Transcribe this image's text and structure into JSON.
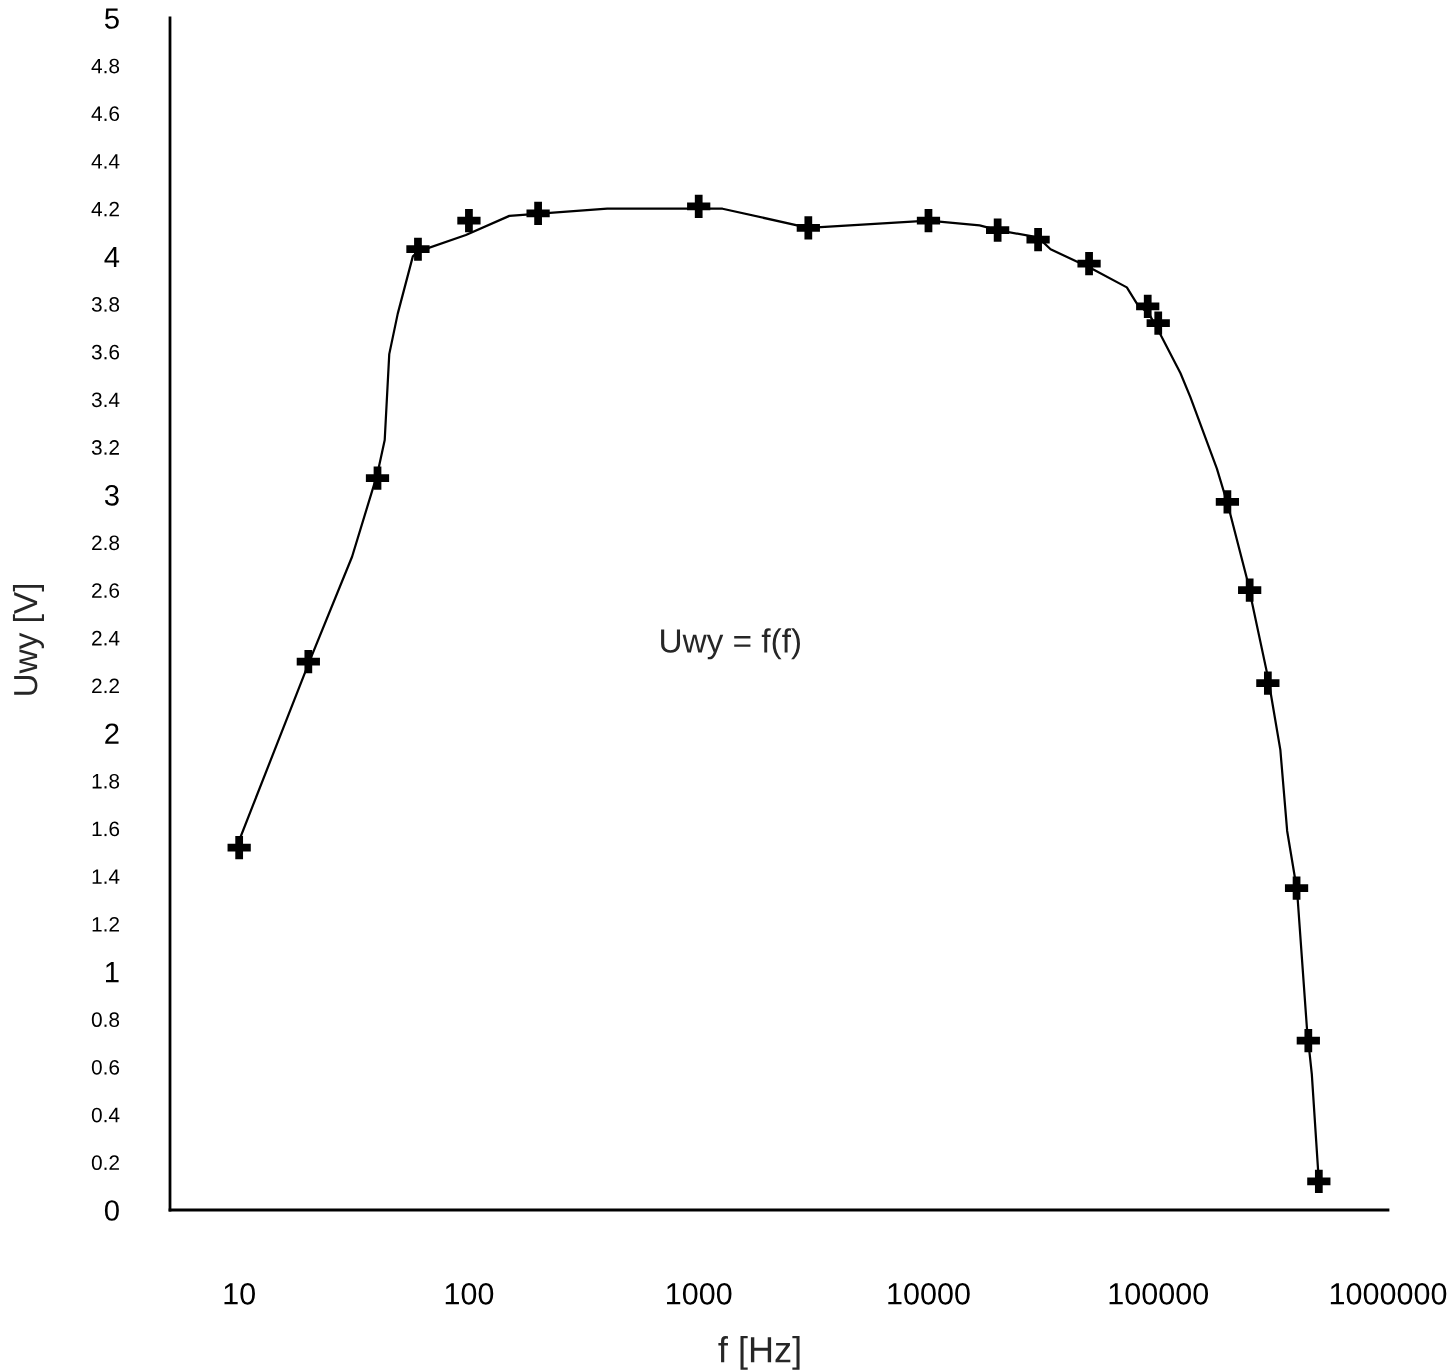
{
  "chart_data": {
    "type": "scatter",
    "xlabel": "f [Hz]",
    "ylabel": "Uwy [V]",
    "annotations": [
      "Uwy = f(f)"
    ],
    "log": "x",
    "xlim": [
      5,
      1000000
    ],
    "xticks": [
      10,
      100,
      1000,
      10000,
      100000,
      1000000
    ],
    "ylim": [
      0,
      5
    ],
    "yticks": [
      0,
      0.2,
      0.4,
      0.6,
      0.8,
      1,
      1.2,
      1.4,
      1.6,
      1.8,
      2,
      2.2,
      2.4,
      2.6,
      2.8,
      3,
      3.2,
      3.4,
      3.6,
      3.8,
      4,
      4.2,
      4.4,
      4.6,
      4.8,
      5
    ],
    "series": [
      {
        "color": "#000000",
        "marker": "cross",
        "x": [
          10,
          20,
          40,
          60,
          100,
          200,
          1000,
          3000,
          10000,
          20000,
          30000,
          50000,
          90000,
          100000,
          200000,
          250000,
          300000,
          400000,
          450000,
          500000
        ],
        "values": [
          1.52,
          2.3,
          3.07,
          4.03,
          4.15,
          4.18,
          4.21,
          4.12,
          4.15,
          4.11,
          4.07,
          3.97,
          3.79,
          3.72,
          2.97,
          2.6,
          2.21,
          1.35,
          0.71,
          0.12
        ]
      },
      {
        "type": "line",
        "color": "#000000",
        "marker": "none",
        "line_style": "solid",
        "x": [
          10,
          20,
          31,
          40,
          43,
          45,
          49,
          57,
          60,
          97,
          150,
          400,
          1270,
          3000,
          10000,
          16700,
          20000,
          30000,
          34000,
          51000,
          73000,
          81000,
          91000,
          100000,
          125000,
          138000,
          180000,
          202000,
          243000,
          301000,
          340000,
          364000,
          402000,
          444000,
          466000,
          500000
        ],
        "values": [
          1.55,
          2.29,
          2.74,
          3.09,
          3.23,
          3.59,
          3.76,
          4.0,
          4.02,
          4.09,
          4.17,
          4.2,
          4.2,
          4.12,
          4.15,
          4.13,
          4.11,
          4.08,
          4.03,
          3.95,
          3.87,
          3.8,
          3.76,
          3.69,
          3.51,
          3.41,
          3.11,
          2.95,
          2.65,
          2.23,
          1.93,
          1.59,
          1.34,
          0.76,
          0.57,
          0.12
        ]
      }
    ]
  }
}
